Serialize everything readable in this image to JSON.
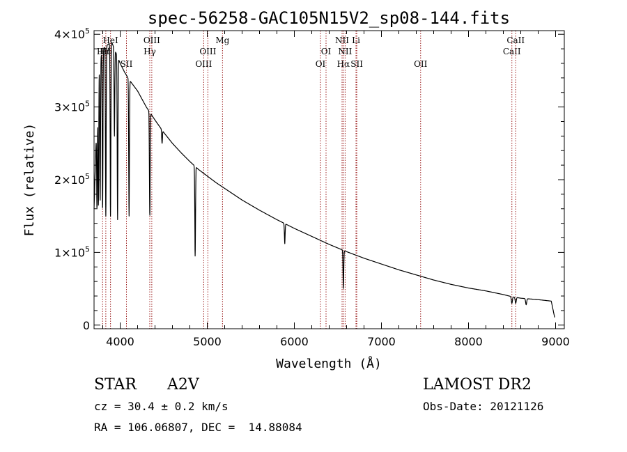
{
  "chart_data": {
    "type": "line",
    "title": "spec-56258-GAC105N15V2_sp08-144.fits",
    "xlabel": "Wavelength (Å)",
    "ylabel": "Flux (relative)",
    "xlim": [
      3700,
      9100
    ],
    "ylim": [
      -5000,
      405000
    ],
    "x_ticks": [
      4000,
      5000,
      6000,
      7000,
      8000,
      9000
    ],
    "x_tick_labels": [
      "4000",
      "5000",
      "6000",
      "7000",
      "8000",
      "9000"
    ],
    "y_ticks": [
      0,
      100000,
      200000,
      300000,
      400000
    ],
    "y_tick_labels": [
      {
        "mant": "0",
        "exp": ""
      },
      {
        "mant": "1×10",
        "exp": "5"
      },
      {
        "mant": "2×10",
        "exp": "5"
      },
      {
        "mant": "3×10",
        "exp": "5"
      },
      {
        "mant": "4×10",
        "exp": "5"
      }
    ],
    "grid": false,
    "line_color": "#000000",
    "marker_color": "#9b1b1b",
    "continuum": {
      "x": [
        3700,
        3730,
        3760,
        3800,
        3850,
        3900,
        3950,
        4000,
        4050,
        4100,
        4150,
        4200,
        4300,
        4400,
        4500,
        4600,
        4700,
        4800,
        4900,
        5000,
        5100,
        5200,
        5400,
        5600,
        5800,
        6000,
        6200,
        6400,
        6600,
        6800,
        7000,
        7200,
        7400,
        7600,
        7800,
        8000,
        8200,
        8400,
        8500,
        8600,
        8800,
        8950,
        8990
      ],
      "y": [
        160000,
        280000,
        360000,
        380000,
        385000,
        390000,
        375000,
        360000,
        348000,
        338000,
        330000,
        322000,
        300000,
        282000,
        265000,
        250000,
        237000,
        225000,
        214000,
        205000,
        196000,
        188000,
        172000,
        158000,
        145000,
        133000,
        122000,
        111000,
        101000,
        92000,
        84000,
        76000,
        69000,
        62000,
        56000,
        51000,
        47000,
        42000,
        39000,
        37000,
        35000,
        33000,
        10000
      ]
    },
    "absorption_lines": [
      {
        "x": 3734,
        "y": 160000
      },
      {
        "x": 3750,
        "y": 165000
      },
      {
        "x": 3770,
        "y": 170000
      },
      {
        "x": 3798,
        "y": 160000
      },
      {
        "x": 3835,
        "y": 150000
      },
      {
        "x": 3889,
        "y": 150000
      },
      {
        "x": 3934,
        "y": 260000
      },
      {
        "x": 3970,
        "y": 145000
      },
      {
        "x": 4102,
        "y": 150000
      },
      {
        "x": 4340,
        "y": 150000
      },
      {
        "x": 4481,
        "y": 250000
      },
      {
        "x": 4861,
        "y": 95000
      },
      {
        "x": 5890,
        "y": 112000
      },
      {
        "x": 6563,
        "y": 50000
      },
      {
        "x": 8498,
        "y": 30000
      },
      {
        "x": 8542,
        "y": 30000
      },
      {
        "x": 8662,
        "y": 28000
      }
    ],
    "line_markers": [
      {
        "x": 3798,
        "label": "Hε",
        "row": 2
      },
      {
        "x": 3835,
        "label": "Hδ",
        "row": 2
      },
      {
        "x": 3889,
        "label": "HeI",
        "row": 1
      },
      {
        "x": 4072,
        "label": "SII",
        "row": 3
      },
      {
        "x": 4340,
        "label": "Hγ",
        "row": 2
      },
      {
        "x": 4363,
        "label": "OIII",
        "row": 1
      },
      {
        "x": 4959,
        "label": "OIII",
        "row": 3
      },
      {
        "x": 5007,
        "label": "OIII",
        "row": 2
      },
      {
        "x": 5175,
        "label": "Mg",
        "row": 1
      },
      {
        "x": 6300,
        "label": "OI",
        "row": 3
      },
      {
        "x": 6364,
        "label": "OI",
        "row": 2
      },
      {
        "x": 6548,
        "label": "NII",
        "row": 1
      },
      {
        "x": 6563,
        "label": "Hα",
        "row": 3
      },
      {
        "x": 6583,
        "label": "NII",
        "row": 2
      },
      {
        "x": 6708,
        "label": "Li",
        "row": 1
      },
      {
        "x": 6717,
        "label": "SII",
        "row": 3
      },
      {
        "x": 7450,
        "label": "OII",
        "row": 3
      },
      {
        "x": 8498,
        "label": "CaII",
        "row": 2
      },
      {
        "x": 8542,
        "label": "CaII",
        "row": 1
      }
    ]
  },
  "info": {
    "object_type": "STAR",
    "spectral_class": "A2V",
    "redshift": "cz = 30.4 ± 0.2 km/s",
    "coordinates": "RA = 106.06807, DEC =  14.88084",
    "survey": "LAMOST DR2",
    "obs_date": "Obs-Date: 20121126"
  }
}
